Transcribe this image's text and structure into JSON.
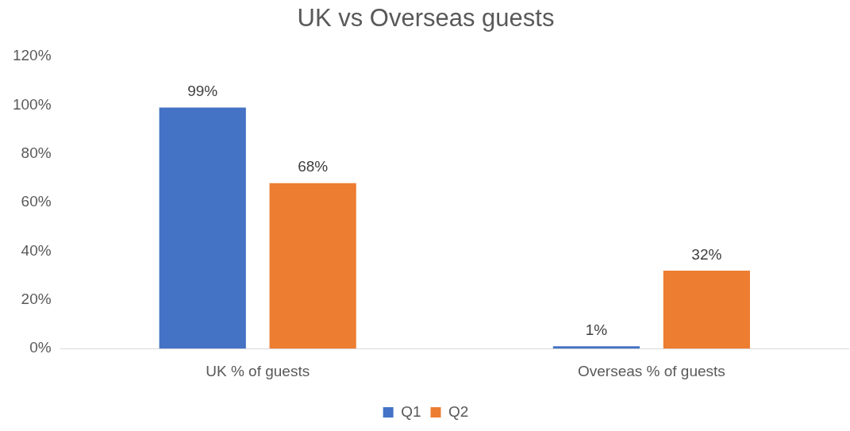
{
  "chart_data": {
    "type": "bar",
    "title": "UK vs Overseas guests",
    "categories": [
      "UK % of guests",
      "Overseas % of guests"
    ],
    "series": [
      {
        "name": "Q1",
        "color": "#4472c4",
        "values": [
          99,
          1
        ],
        "value_labels": [
          "99%",
          "1%"
        ]
      },
      {
        "name": "Q2",
        "color": "#ed7d31",
        "values": [
          68,
          32
        ],
        "value_labels": [
          "68%",
          "32%"
        ]
      }
    ],
    "ylim": [
      0,
      120
    ],
    "yticks": [
      {
        "value": 0,
        "label": "0%"
      },
      {
        "value": 20,
        "label": "20%"
      },
      {
        "value": 40,
        "label": "40%"
      },
      {
        "value": 60,
        "label": "60%"
      },
      {
        "value": 80,
        "label": "80%"
      },
      {
        "value": 100,
        "label": "100%"
      },
      {
        "value": 120,
        "label": "120%"
      }
    ],
    "grid": false,
    "legend": "bottom"
  }
}
